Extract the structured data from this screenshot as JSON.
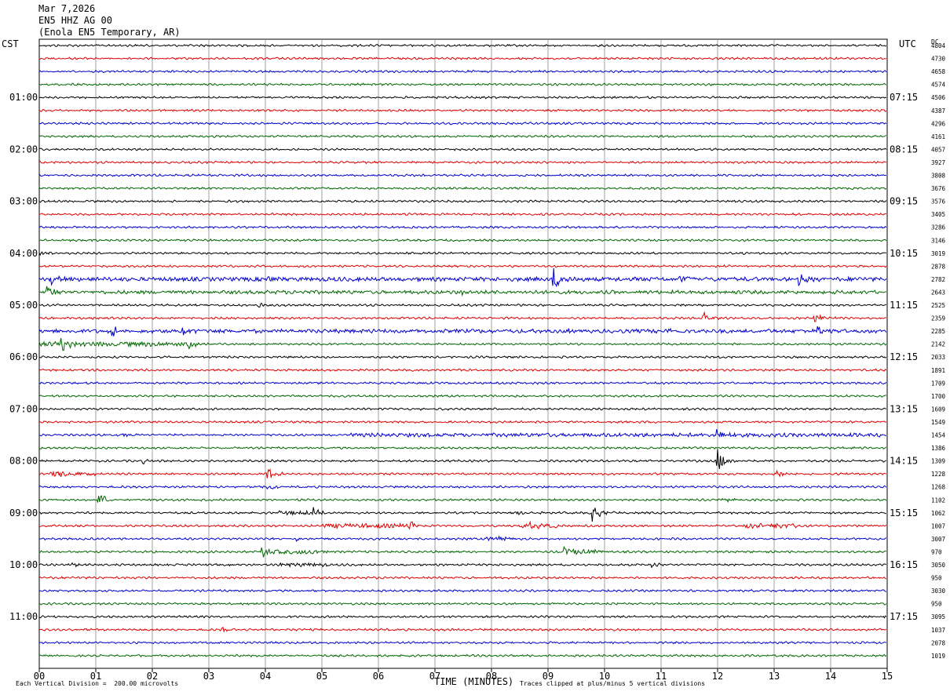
{
  "header": {
    "date": "Mar 7,2026",
    "channel": "EN5 HHZ AG 00",
    "station": "(Enola EN5 Temporary, AR)"
  },
  "left_tz": "CST",
  "right_tz": "UTC",
  "dc_label": "DC",
  "colors": {
    "trace": [
      "#000000",
      "#dd0000",
      "#0000cc",
      "#006600"
    ],
    "grid": "#888888"
  },
  "chart_data": {
    "type": "line",
    "xlabel": "TIME (MINUTES)",
    "xticks": [
      "00",
      "01",
      "02",
      "03",
      "04",
      "05",
      "06",
      "07",
      "08",
      "09",
      "10",
      "11",
      "12",
      "13",
      "14",
      "15"
    ],
    "xlim": [
      0,
      15
    ],
    "row_count": 48,
    "left_hour_labels": [
      "01:00",
      "02:00",
      "03:00",
      "04:00",
      "05:00",
      "06:00",
      "07:00",
      "08:00",
      "09:00",
      "10:00",
      "11:00"
    ],
    "right_hour_labels": [
      "07:15",
      "08:15",
      "09:15",
      "10:15",
      "11:15",
      "12:15",
      "13:15",
      "14:15",
      "15:15",
      "16:15",
      "17:15"
    ],
    "dc_values": [
      "4804",
      "4730",
      "4658",
      "4574",
      "4506",
      "4387",
      "4296",
      "4161",
      "4057",
      "3927",
      "3808",
      "3676",
      "3576",
      "3405",
      "3286",
      "3146",
      "3019",
      "2878",
      "2782",
      "2643",
      "2525",
      "2359",
      "2285",
      "2142",
      "2033",
      "1891",
      "1709",
      "1700",
      "1609",
      "1549",
      "1454",
      "1386",
      "1309",
      "1228",
      "1268",
      "1102",
      "1062",
      "1007",
      "3007",
      "970",
      "3050",
      "950",
      "3030",
      "950",
      "3095",
      "1037",
      "2078",
      "1019"
    ],
    "events": [
      {
        "row": 16,
        "minute": 0.0,
        "amp": 3
      },
      {
        "row": 18,
        "minute": 0.2,
        "amp": 7
      },
      {
        "row": 18,
        "minute": 9.1,
        "amp": 14
      },
      {
        "row": 18,
        "minute": 11.35,
        "amp": 6
      },
      {
        "row": 18,
        "minute": 13.45,
        "amp": 7
      },
      {
        "row": 18,
        "minute": 4.05,
        "amp": 4
      },
      {
        "row": 19,
        "minute": 0.15,
        "amp": 9
      },
      {
        "row": 19,
        "minute": 7.45,
        "amp": 3
      },
      {
        "row": 20,
        "minute": 3.9,
        "amp": 3
      },
      {
        "row": 21,
        "minute": 11.75,
        "amp": 8
      },
      {
        "row": 21,
        "minute": 13.7,
        "amp": 8
      },
      {
        "row": 22,
        "minute": 1.3,
        "amp": 6
      },
      {
        "row": 22,
        "minute": 2.55,
        "amp": 5
      },
      {
        "row": 22,
        "minute": 11.1,
        "amp": 4
      },
      {
        "row": 22,
        "minute": 13.75,
        "amp": 6
      },
      {
        "row": 22,
        "minute": 9.35,
        "amp": 3
      },
      {
        "row": 23,
        "minute": 0.4,
        "amp": 8
      },
      {
        "row": 23,
        "minute": 2.65,
        "amp": 6
      },
      {
        "row": 30,
        "minute": 1.5,
        "amp": 3
      },
      {
        "row": 30,
        "minute": 12.0,
        "amp": 7
      },
      {
        "row": 32,
        "minute": 12.0,
        "amp": 16
      },
      {
        "row": 32,
        "minute": 1.85,
        "amp": 3
      },
      {
        "row": 33,
        "minute": 0.3,
        "amp": 4
      },
      {
        "row": 33,
        "minute": 4.05,
        "amp": 8
      },
      {
        "row": 33,
        "minute": 13.05,
        "amp": 4
      },
      {
        "row": 34,
        "minute": 4.05,
        "amp": 5
      },
      {
        "row": 35,
        "minute": 1.05,
        "amp": 10
      },
      {
        "row": 35,
        "minute": 12.1,
        "amp": 3
      },
      {
        "row": 36,
        "minute": 4.85,
        "amp": 5
      },
      {
        "row": 36,
        "minute": 9.8,
        "amp": 12
      },
      {
        "row": 36,
        "minute": 8.45,
        "amp": 3
      },
      {
        "row": 37,
        "minute": 6.55,
        "amp": 8
      },
      {
        "row": 37,
        "minute": 12.75,
        "amp": 6
      },
      {
        "row": 37,
        "minute": 8.7,
        "amp": 4
      },
      {
        "row": 38,
        "minute": 8.15,
        "amp": 4
      },
      {
        "row": 38,
        "minute": 4.55,
        "amp": 3
      },
      {
        "row": 39,
        "minute": 3.95,
        "amp": 6
      },
      {
        "row": 39,
        "minute": 9.3,
        "amp": 7
      },
      {
        "row": 40,
        "minute": 0.6,
        "amp": 3
      },
      {
        "row": 40,
        "minute": 10.85,
        "amp": 3
      },
      {
        "row": 45,
        "minute": 3.25,
        "amp": 3
      }
    ],
    "noisy_segments": [
      {
        "row": 18,
        "from": 0.0,
        "to": 14.9,
        "amp": 2.2
      },
      {
        "row": 19,
        "from": 0.0,
        "to": 14.9,
        "amp": 1.8
      },
      {
        "row": 22,
        "from": 0.0,
        "to": 14.9,
        "amp": 2.0
      },
      {
        "row": 23,
        "from": 0.0,
        "to": 2.8,
        "amp": 2.6
      },
      {
        "row": 30,
        "from": 5.5,
        "to": 14.9,
        "amp": 2.0
      },
      {
        "row": 33,
        "from": 0.2,
        "to": 1.0,
        "amp": 2.4
      },
      {
        "row": 36,
        "from": 4.2,
        "to": 4.9,
        "amp": 2.2
      },
      {
        "row": 37,
        "from": 5.0,
        "to": 6.6,
        "amp": 2.6
      },
      {
        "row": 37,
        "from": 8.5,
        "to": 9.2,
        "amp": 2.2
      },
      {
        "row": 37,
        "from": 12.5,
        "to": 13.5,
        "amp": 2.6
      },
      {
        "row": 38,
        "from": 7.9,
        "to": 8.3,
        "amp": 2.0
      },
      {
        "row": 39,
        "from": 3.9,
        "to": 5.1,
        "amp": 2.4
      },
      {
        "row": 39,
        "from": 9.3,
        "to": 10.0,
        "amp": 2.2
      },
      {
        "row": 40,
        "from": 4.2,
        "to": 5.1,
        "amp": 2.0
      }
    ]
  },
  "footer": {
    "scale_note": "Each Vertical Division =  200.00 microvolts",
    "clip_note": "Traces clipped at plus/minus 5 vertical divisions"
  }
}
